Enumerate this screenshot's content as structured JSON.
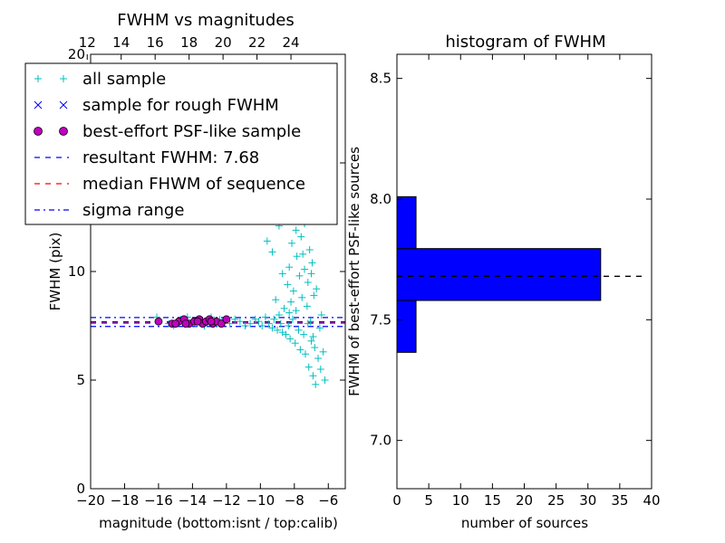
{
  "chart_data": [
    {
      "type": "scatter",
      "title": "FWHM vs magnitudes",
      "xlabel": "magnitude (bottom:isnt / top:calib)",
      "ylabel": "FWHM (pix)",
      "xlim": [
        -20,
        -5
      ],
      "ylim": [
        0,
        20
      ],
      "x_ticks": [
        -20,
        -18,
        -16,
        -14,
        -12,
        -10,
        -8,
        -6
      ],
      "x_tick_labels": [
        "−20",
        "−18",
        "−16",
        "−14",
        "−12",
        "−10",
        "−8",
        "−6"
      ],
      "y_ticks": [
        0,
        5,
        10,
        15,
        20
      ],
      "y_tick_labels": [
        "0",
        "5",
        "10",
        "15",
        "20"
      ],
      "top_axis": {
        "offset": 32.2,
        "ticks": [
          12,
          14,
          16,
          18,
          20,
          22,
          24
        ],
        "tick_labels": [
          "12",
          "14",
          "16",
          "18",
          "20",
          "22",
          "24"
        ]
      },
      "grid": false,
      "legend": {
        "position": "upper-left",
        "entries": [
          {
            "label": "all sample",
            "marker": "plus",
            "color": "#00bfbf"
          },
          {
            "label": "sample for rough FWHM",
            "marker": "x",
            "color": "#0000ff"
          },
          {
            "label": "best-effort PSF-like sample",
            "marker": "circle",
            "color": "#bf00bf"
          },
          {
            "label": "resultant FWHM: 7.68",
            "marker": "dashed",
            "color": "#0000ff"
          },
          {
            "label": "median FHWM of sequence",
            "marker": "dashed",
            "color": "#ff0000"
          },
          {
            "label": "sigma range",
            "marker": "dashdot",
            "color": "#0000ff"
          }
        ]
      },
      "hlines": [
        {
          "y": 7.68,
          "style": "dashed",
          "color": "#0000ff"
        },
        {
          "y": 7.62,
          "style": "dashed",
          "color": "#ff0000"
        },
        {
          "y": 7.88,
          "style": "dashdot",
          "color": "#0000ff"
        },
        {
          "y": 7.47,
          "style": "dashdot",
          "color": "#0000ff"
        }
      ],
      "series": [
        {
          "name": "all sample",
          "marker": "plus",
          "color": "#00bfbf",
          "points": [
            [
              -16.1,
              7.9
            ],
            [
              -15.4,
              7.6
            ],
            [
              -15.1,
              7.5
            ],
            [
              -14.9,
              7.7
            ],
            [
              -14.7,
              7.8
            ],
            [
              -14.5,
              7.6
            ],
            [
              -14.3,
              7.9
            ],
            [
              -14.0,
              7.7
            ],
            [
              -13.8,
              7.6
            ],
            [
              -13.6,
              7.8
            ],
            [
              -13.3,
              7.5
            ],
            [
              -13.1,
              7.7
            ],
            [
              -12.9,
              7.9
            ],
            [
              -12.6,
              7.6
            ],
            [
              -12.4,
              7.8
            ],
            [
              -12.1,
              7.7
            ],
            [
              -11.8,
              7.6
            ],
            [
              -11.5,
              7.8
            ],
            [
              -11.2,
              7.7
            ],
            [
              -10.9,
              7.5
            ],
            [
              -10.6,
              7.6
            ],
            [
              -10.3,
              7.8
            ],
            [
              -10.1,
              7.7
            ],
            [
              -9.9,
              7.5
            ],
            [
              -9.7,
              7.9
            ],
            [
              -9.5,
              7.6
            ],
            [
              -9.3,
              7.4
            ],
            [
              -9.2,
              7.8
            ],
            [
              -9.0,
              7.3
            ],
            [
              -8.9,
              8.0
            ],
            [
              -8.8,
              7.6
            ],
            [
              -8.7,
              7.2
            ],
            [
              -8.6,
              8.3
            ],
            [
              -8.5,
              7.1
            ],
            [
              -8.4,
              9.4
            ],
            [
              -8.35,
              7.5
            ],
            [
              -8.3,
              10.2
            ],
            [
              -8.25,
              6.9
            ],
            [
              -8.2,
              8.6
            ],
            [
              -8.15,
              11.3
            ],
            [
              -8.1,
              7.8
            ],
            [
              -8.05,
              9.1
            ],
            [
              -8.0,
              12.4
            ],
            [
              -7.95,
              6.7
            ],
            [
              -7.9,
              8.2
            ],
            [
              -7.85,
              10.7
            ],
            [
              -7.8,
              13.2
            ],
            [
              -7.75,
              7.3
            ],
            [
              -7.7,
              9.8
            ],
            [
              -7.65,
              6.4
            ],
            [
              -7.6,
              11.6
            ],
            [
              -7.55,
              8.8
            ],
            [
              -7.5,
              14.1
            ],
            [
              -7.45,
              7.1
            ],
            [
              -7.4,
              10.1
            ],
            [
              -7.35,
              6.2
            ],
            [
              -7.3,
              12.8
            ],
            [
              -7.25,
              8.4
            ],
            [
              -7.2,
              9.5
            ],
            [
              -7.15,
              5.6
            ],
            [
              -7.1,
              11.0
            ],
            [
              -7.05,
              7.7
            ],
            [
              -7.0,
              6.8
            ],
            [
              -6.95,
              10.4
            ],
            [
              -6.9,
              5.2
            ],
            [
              -6.85,
              8.9
            ],
            [
              -6.8,
              6.5
            ],
            [
              -6.75,
              4.8
            ],
            [
              -6.7,
              9.2
            ],
            [
              -6.6,
              6.0
            ],
            [
              -6.5,
              7.4
            ],
            [
              -6.45,
              5.5
            ],
            [
              -6.4,
              8.0
            ],
            [
              -6.3,
              6.3
            ],
            [
              -6.2,
              5.0
            ],
            [
              -8.6,
              15.8
            ],
            [
              -8.2,
              17.5
            ],
            [
              -7.6,
              18.5
            ],
            [
              -7.3,
              16.6
            ],
            [
              -8.9,
              12.1
            ],
            [
              -9.3,
              10.9
            ],
            [
              -9.6,
              11.4
            ],
            [
              -8.0,
              14.6
            ],
            [
              -7.8,
              15.2
            ],
            [
              -8.4,
              13.5
            ],
            [
              -7.1,
              13.9
            ],
            [
              -7.4,
              12.2
            ],
            [
              -8.7,
              9.9
            ],
            [
              -9.1,
              8.7
            ],
            [
              -7.9,
              11.9
            ],
            [
              -7.5,
              10.8
            ],
            [
              -7.2,
              7.6
            ],
            [
              -6.9,
              7.0
            ],
            [
              -8.3,
              8.1
            ],
            [
              -7.7,
              16.1
            ],
            [
              -7.0,
              9.9
            ]
          ]
        },
        {
          "name": "best-effort PSF-like sample",
          "marker": "circle",
          "color": "#bf00bf",
          "points": [
            [
              -16.0,
              7.7
            ],
            [
              -15.2,
              7.6
            ],
            [
              -14.8,
              7.7
            ],
            [
              -14.5,
              7.8
            ],
            [
              -14.2,
              7.6
            ],
            [
              -13.9,
              7.7
            ],
            [
              -13.6,
              7.8
            ],
            [
              -13.4,
              7.6
            ],
            [
              -13.2,
              7.7
            ],
            [
              -13.0,
              7.8
            ],
            [
              -12.8,
              7.6
            ],
            [
              -12.6,
              7.7
            ],
            [
              -12.3,
              7.6
            ],
            [
              -12.0,
              7.8
            ],
            [
              -14.4,
              7.6
            ],
            [
              -13.7,
              7.7
            ],
            [
              -12.9,
              7.7
            ],
            [
              -15.0,
              7.6
            ]
          ]
        }
      ]
    },
    {
      "type": "bar",
      "orientation": "horizontal",
      "title": "histogram of FWHM",
      "xlabel": "number of sources",
      "ylabel": "FWHM of best-effort PSF-like sources",
      "xlim": [
        0,
        40
      ],
      "ylim": [
        6.8,
        8.6
      ],
      "x_ticks": [
        0,
        5,
        10,
        15,
        20,
        25,
        30,
        35,
        40
      ],
      "x_tick_labels": [
        "0",
        "5",
        "10",
        "15",
        "20",
        "25",
        "30",
        "35",
        "40"
      ],
      "y_ticks": [
        7.0,
        7.5,
        8.0,
        8.5
      ],
      "y_tick_labels": [
        "7.0",
        "7.5",
        "8.0",
        "8.5"
      ],
      "grid": false,
      "bar_color": "#0000ff",
      "bins": [
        {
          "from": 7.365,
          "to": 7.58,
          "count": 3
        },
        {
          "from": 7.58,
          "to": 7.795,
          "count": 32
        },
        {
          "from": 7.795,
          "to": 8.01,
          "count": 3
        }
      ],
      "hlines": [
        {
          "y": 7.68,
          "style": "dashed",
          "color": "#000000",
          "x_range": [
            0,
            38.5
          ]
        }
      ]
    }
  ]
}
